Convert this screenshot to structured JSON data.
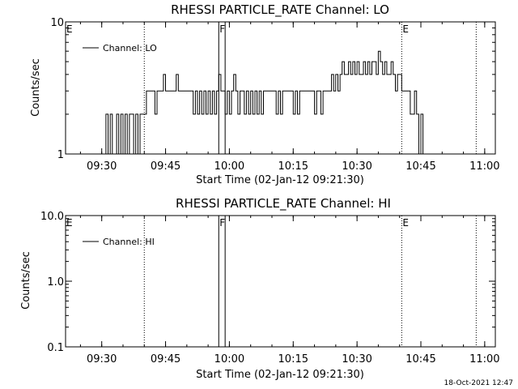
{
  "chart_data": [
    {
      "type": "line",
      "title": "RHESSI PARTICLE_RATE Channel: LO",
      "xlabel": "Start Time (02-Jan-12 09:21:30)",
      "ylabel": "Counts/sec",
      "yscale": "log",
      "ylim": [
        1,
        10
      ],
      "xlim": [
        "09:21:30",
        "11:02:30"
      ],
      "x_ticks": [
        "09:30",
        "09:45",
        "10:00",
        "10:15",
        "10:30",
        "10:45",
        "11:00"
      ],
      "y_ticks": [
        "1",
        "10"
      ],
      "legend": {
        "entries": [
          "Channel: LO"
        ],
        "placement": "top-left"
      },
      "grid": false,
      "markers": [
        {
          "label": "E",
          "time": "09:21:30",
          "style": "dotted"
        },
        {
          "label": "",
          "time": "09:40:00",
          "style": "dotted"
        },
        {
          "label": "F",
          "time": "09:57:30",
          "style": "solid"
        },
        {
          "label": "",
          "time": "09:59:00",
          "style": "solid"
        },
        {
          "label": "E",
          "time": "10:40:30",
          "style": "dotted"
        },
        {
          "label": "",
          "time": "10:58:00",
          "style": "dotted"
        }
      ],
      "series": [
        {
          "name": "Channel: LO",
          "x": [
            "09:30:30",
            "09:31:00",
            "09:31:30",
            "09:32:00",
            "09:32:30",
            "09:33:00",
            "09:33:30",
            "09:34:00",
            "09:34:30",
            "09:35:00",
            "09:35:30",
            "09:36:00",
            "09:36:30",
            "09:37:00",
            "09:37:30",
            "09:38:00",
            "09:38:30",
            "09:39:00",
            "09:39:30",
            "09:40:00",
            "09:40:30",
            "09:41:00",
            "09:41:30",
            "09:42:00",
            "09:42:30",
            "09:43:00",
            "09:43:30",
            "09:44:00",
            "09:44:30",
            "09:45:00",
            "09:45:30",
            "09:46:00",
            "09:46:30",
            "09:47:00",
            "09:47:30",
            "09:48:00",
            "09:48:30",
            "09:49:00",
            "09:49:30",
            "09:50:00",
            "09:50:30",
            "09:51:00",
            "09:51:30",
            "09:52:00",
            "09:52:30",
            "09:53:00",
            "09:53:30",
            "09:54:00",
            "09:54:30",
            "09:55:00",
            "09:55:30",
            "09:56:00",
            "09:56:30",
            "09:57:00",
            "09:57:30",
            "09:58:00",
            "09:58:30",
            "09:59:00",
            "09:59:30",
            "10:00:00",
            "10:00:30",
            "10:01:00",
            "10:01:30",
            "10:02:00",
            "10:02:30",
            "10:03:00",
            "10:03:30",
            "10:04:00",
            "10:04:30",
            "10:05:00",
            "10:05:30",
            "10:06:00",
            "10:06:30",
            "10:07:00",
            "10:07:30",
            "10:08:00",
            "10:08:30",
            "10:09:00",
            "10:09:30",
            "10:10:00",
            "10:10:30",
            "10:11:00",
            "10:11:30",
            "10:12:00",
            "10:12:30",
            "10:13:00",
            "10:13:30",
            "10:14:00",
            "10:14:30",
            "10:15:00",
            "10:15:30",
            "10:16:00",
            "10:16:30",
            "10:17:00",
            "10:17:30",
            "10:18:00",
            "10:18:30",
            "10:19:00",
            "10:19:30",
            "10:20:00",
            "10:20:30",
            "10:21:00",
            "10:21:30",
            "10:22:00",
            "10:22:30",
            "10:23:00",
            "10:23:30",
            "10:24:00",
            "10:24:30",
            "10:25:00",
            "10:25:30",
            "10:26:00",
            "10:26:30",
            "10:27:00",
            "10:27:30",
            "10:28:00",
            "10:28:30",
            "10:29:00",
            "10:29:30",
            "10:30:00",
            "10:30:30",
            "10:31:00",
            "10:31:30",
            "10:32:00",
            "10:32:30",
            "10:33:00",
            "10:33:30",
            "10:34:00",
            "10:34:30",
            "10:35:00",
            "10:35:30",
            "10:36:00",
            "10:36:30",
            "10:37:00",
            "10:37:30",
            "10:38:00",
            "10:38:30",
            "10:39:00",
            "10:39:30",
            "10:40:00",
            "10:40:30",
            "10:41:00",
            "10:41:30",
            "10:42:00",
            "10:42:30",
            "10:43:00",
            "10:43:30",
            "10:44:00",
            "10:44:30",
            "10:45:00",
            "10:45:30"
          ],
          "y": [
            1,
            2,
            1,
            2,
            1,
            1,
            2,
            1,
            2,
            1,
            2,
            1,
            2,
            2,
            1,
            2,
            1,
            2,
            2,
            2,
            3,
            3,
            3,
            3,
            2,
            3,
            3,
            3,
            4,
            3,
            3,
            3,
            3,
            3,
            4,
            3,
            3,
            3,
            3,
            3,
            3,
            3,
            2,
            3,
            2,
            3,
            2,
            3,
            2,
            3,
            2,
            3,
            2,
            3,
            4,
            3,
            3,
            2,
            3,
            2,
            3,
            4,
            3,
            2,
            3,
            3,
            2,
            3,
            2,
            3,
            2,
            3,
            2,
            3,
            2,
            3,
            3,
            3,
            3,
            3,
            3,
            2,
            3,
            2,
            3,
            3,
            3,
            3,
            3,
            2,
            3,
            2,
            3,
            3,
            3,
            3,
            3,
            3,
            3,
            2,
            3,
            3,
            2,
            3,
            3,
            3,
            3,
            4,
            3,
            4,
            3,
            4,
            5,
            4,
            4,
            5,
            4,
            5,
            4,
            5,
            4,
            4,
            5,
            4,
            5,
            4,
            5,
            5,
            4,
            6,
            5,
            4,
            5,
            4,
            4,
            5,
            4,
            3,
            4,
            4,
            3,
            3,
            3,
            3,
            2,
            2,
            3,
            2,
            1,
            2,
            1
          ]
        }
      ]
    },
    {
      "type": "line",
      "title": "RHESSI PARTICLE_RATE Channel: HI",
      "xlabel": "Start Time (02-Jan-12 09:21:30)",
      "ylabel": "Counts/sec",
      "yscale": "log",
      "ylim": [
        0.1,
        10
      ],
      "xlim": [
        "09:21:30",
        "11:02:30"
      ],
      "x_ticks": [
        "09:30",
        "09:45",
        "10:00",
        "10:15",
        "10:30",
        "10:45",
        "11:00"
      ],
      "y_ticks": [
        "10.0",
        "1.0",
        "0.1"
      ],
      "legend": {
        "entries": [
          "Channel: HI"
        ],
        "placement": "top-left"
      },
      "grid": false,
      "markers": [
        {
          "label": "E",
          "time": "09:21:30",
          "style": "dotted"
        },
        {
          "label": "",
          "time": "09:40:00",
          "style": "dotted"
        },
        {
          "label": "F",
          "time": "09:57:30",
          "style": "solid"
        },
        {
          "label": "",
          "time": "09:59:00",
          "style": "solid"
        },
        {
          "label": "E",
          "time": "10:40:30",
          "style": "dotted"
        },
        {
          "label": "",
          "time": "10:58:00",
          "style": "dotted"
        }
      ],
      "series": [
        {
          "name": "Channel: HI",
          "x": [],
          "y": []
        }
      ]
    }
  ],
  "footer": {
    "timestamp": "18-Oct-2021 12:47"
  }
}
